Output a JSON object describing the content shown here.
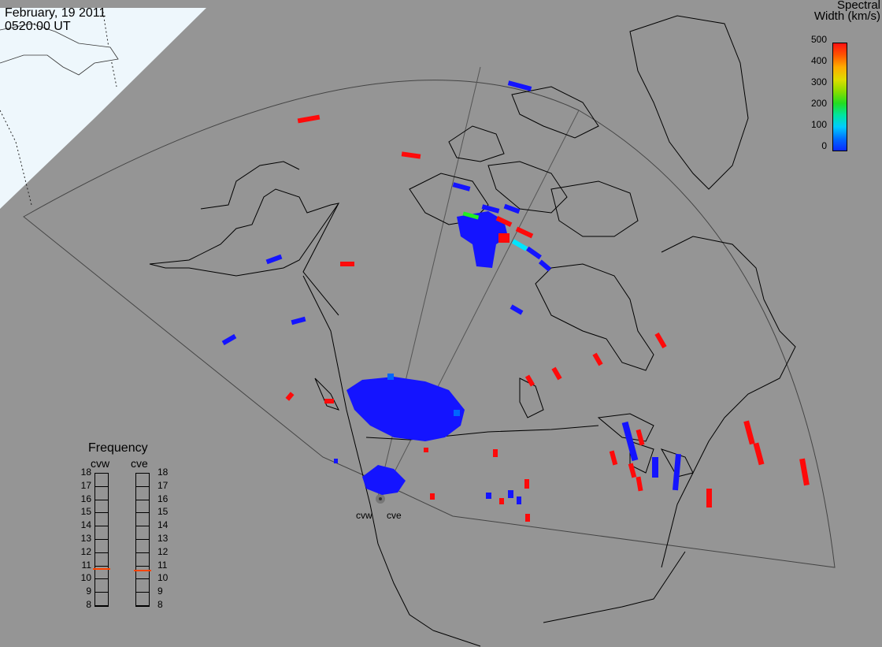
{
  "header": {
    "date": "February, 19 2011",
    "time": "0520:00 UT"
  },
  "colorbar": {
    "title_line1": "Spectral",
    "title_line2": "Width (km/s)",
    "ticks": [
      "500",
      "400",
      "300",
      "200",
      "100",
      "0"
    ],
    "colors": [
      "#0000ff",
      "#00ffff",
      "#00ff00",
      "#ffff00",
      "#ff8800",
      "#ff0000"
    ]
  },
  "frequency_panel": {
    "title": "Frequency",
    "radar_left": "cvw",
    "radar_right": "cve",
    "levels": [
      "18",
      "17",
      "16",
      "15",
      "14",
      "13",
      "12",
      "11",
      "10",
      "9",
      "8"
    ],
    "cvw_value": 10.8,
    "cve_value": 10.7,
    "marker_color": "#ff4400"
  },
  "radars": {
    "left": "cvw",
    "right": "cve"
  },
  "map_colors": {
    "background": "#959595",
    "coast": "#000000",
    "grid": "#555555",
    "daylight": "#f0f8ff",
    "blue": "#1414ff",
    "red": "#ff0a0a",
    "cyan": "#00e5ff",
    "green": "#22ee22"
  }
}
